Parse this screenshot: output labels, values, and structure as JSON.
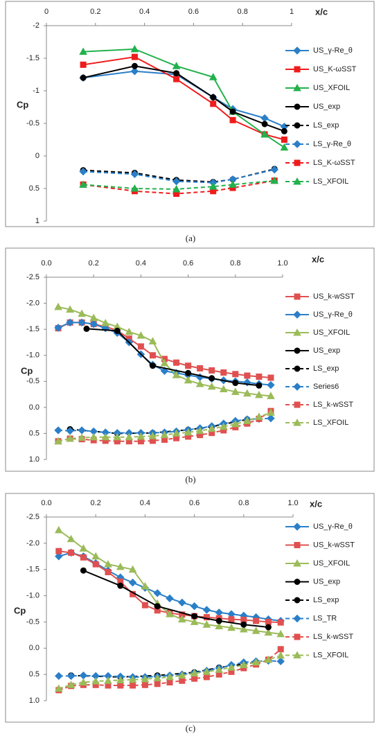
{
  "chart_data": [
    {
      "type": "line",
      "caption": "(a)",
      "xlabel": "x/c",
      "ylabel": "Cp",
      "xlim": [
        0,
        1
      ],
      "xticks": [
        0,
        0.2,
        0.4,
        0.6,
        0.8,
        1
      ],
      "ylim": [
        -2,
        1
      ],
      "y_reversed": true,
      "yticks": [
        -2,
        -1.5,
        -1,
        -0.5,
        0,
        0.5,
        1
      ],
      "legend": "right",
      "series": [
        {
          "name": "US_γ-Re_θ",
          "color": "#2a7fc8",
          "marker": "diamond",
          "dashed": false,
          "x": [
            0.15,
            0.36,
            0.53,
            0.68,
            0.76,
            0.89,
            0.97
          ],
          "values": [
            -1.2,
            -1.3,
            -1.25,
            -0.9,
            -0.72,
            -0.58,
            -0.45
          ]
        },
        {
          "name": "US_K-ωSST",
          "color": "#ee1c1c",
          "marker": "square",
          "dashed": false,
          "x": [
            0.15,
            0.36,
            0.53,
            0.68,
            0.76,
            0.89,
            0.97
          ],
          "values": [
            -1.4,
            -1.52,
            -1.18,
            -0.8,
            -0.55,
            -0.33,
            -0.25
          ]
        },
        {
          "name": "US_XFOIL",
          "color": "#22b14c",
          "marker": "triangle",
          "dashed": false,
          "x": [
            0.15,
            0.36,
            0.53,
            0.68,
            0.76,
            0.89,
            0.97
          ],
          "values": [
            -1.6,
            -1.64,
            -1.38,
            -1.21,
            -0.68,
            -0.33,
            -0.13
          ]
        },
        {
          "name": "US_exp",
          "color": "#000000",
          "marker": "circle",
          "dashed": false,
          "x": [
            0.15,
            0.36,
            0.53,
            0.68,
            0.76,
            0.89,
            0.97
          ],
          "values": [
            -1.2,
            -1.38,
            -1.27,
            -0.9,
            -0.68,
            -0.49,
            -0.38
          ]
        },
        {
          "name": "LS_exp",
          "color": "#000000",
          "marker": "circle",
          "dashed": true,
          "x": [
            0.15,
            0.36,
            0.53,
            0.68,
            0.76,
            0.93
          ],
          "values": [
            0.22,
            0.26,
            0.37,
            0.4,
            0.36,
            0.2
          ]
        },
        {
          "name": "LS_γ-Re_θ",
          "color": "#2a7fc8",
          "marker": "diamond",
          "dashed": true,
          "x": [
            0.15,
            0.36,
            0.53,
            0.68,
            0.76,
            0.93
          ],
          "values": [
            0.24,
            0.28,
            0.39,
            0.41,
            0.36,
            0.21
          ]
        },
        {
          "name": "LS_K-ωSST",
          "color": "#ee1c1c",
          "marker": "square",
          "dashed": true,
          "x": [
            0.15,
            0.36,
            0.53,
            0.68,
            0.76,
            0.93
          ],
          "values": [
            0.44,
            0.54,
            0.58,
            0.54,
            0.49,
            0.38
          ]
        },
        {
          "name": "LS_XFOIL",
          "color": "#22b14c",
          "marker": "triangle",
          "dashed": true,
          "x": [
            0.15,
            0.36,
            0.53,
            0.68,
            0.76,
            0.93
          ],
          "values": [
            0.44,
            0.5,
            0.51,
            0.47,
            0.44,
            0.38
          ]
        }
      ]
    },
    {
      "type": "line",
      "caption": "(b)",
      "xlabel": "x/c",
      "ylabel": "Cp",
      "xlim": [
        0,
        1
      ],
      "xticks": [
        {
          "value": 0,
          "label": "0.0"
        },
        0.2,
        0.4,
        0.6,
        0.8,
        {
          "value": 1,
          "label": "1.0"
        }
      ],
      "ylim": [
        -2.5,
        1
      ],
      "y_reversed": true,
      "yticks": [
        {
          "value": -2.5,
          "label": "-2.5"
        },
        {
          "value": -2,
          "label": "-2.0"
        },
        {
          "value": -1.5,
          "label": "-1.5"
        },
        {
          "value": -1,
          "label": "-1.0"
        },
        {
          "value": -0.5,
          "label": "-0.5"
        },
        {
          "value": 0,
          "label": "0.0"
        },
        {
          "value": 0.5,
          "label": "0.5"
        },
        {
          "value": 1,
          "label": "1.0"
        }
      ],
      "legend": "right",
      "series": [
        {
          "name": "US_k-wSST",
          "color": "#e05050",
          "marker": "square",
          "dashed": false,
          "x": [
            0.05,
            0.1,
            0.15,
            0.2,
            0.25,
            0.3,
            0.35,
            0.4,
            0.45,
            0.5,
            0.55,
            0.6,
            0.65,
            0.7,
            0.75,
            0.8,
            0.85,
            0.9,
            0.95
          ],
          "values": [
            -1.52,
            -1.63,
            -1.63,
            -1.6,
            -1.55,
            -1.48,
            -1.32,
            -1.17,
            -1.0,
            -0.93,
            -0.86,
            -0.8,
            -0.75,
            -0.71,
            -0.67,
            -0.64,
            -0.61,
            -0.59,
            -0.57
          ]
        },
        {
          "name": "US_γ-Re_θ",
          "color": "#2a7fc8",
          "marker": "diamond",
          "dashed": false,
          "x": [
            0.05,
            0.1,
            0.15,
            0.2,
            0.25,
            0.3,
            0.35,
            0.4,
            0.45,
            0.5,
            0.55,
            0.6,
            0.65,
            0.7,
            0.75,
            0.8,
            0.85,
            0.9,
            0.95
          ],
          "values": [
            -1.53,
            -1.63,
            -1.63,
            -1.6,
            -1.52,
            -1.43,
            -1.25,
            -1.02,
            -0.82,
            -0.7,
            -0.66,
            -0.62,
            -0.58,
            -0.55,
            -0.52,
            -0.5,
            -0.48,
            -0.45,
            -0.43
          ]
        },
        {
          "name": "US_XFOIL",
          "color": "#9bbb59",
          "marker": "triangle",
          "dashed": false,
          "x": [
            0.05,
            0.1,
            0.15,
            0.2,
            0.25,
            0.3,
            0.35,
            0.4,
            0.45,
            0.5,
            0.55,
            0.6,
            0.65,
            0.7,
            0.75,
            0.8,
            0.85,
            0.9,
            0.95
          ],
          "values": [
            -1.93,
            -1.88,
            -1.8,
            -1.72,
            -1.62,
            -1.55,
            -1.45,
            -1.38,
            -1.27,
            -0.85,
            -0.62,
            -0.52,
            -0.45,
            -0.4,
            -0.35,
            -0.3,
            -0.27,
            -0.24,
            -0.22
          ]
        },
        {
          "name": "US_exp",
          "color": "#000000",
          "marker": "circle",
          "dashed": false,
          "x": [
            0.17,
            0.3,
            0.45,
            0.6,
            0.7,
            0.8,
            0.9
          ],
          "values": [
            -1.51,
            -1.47,
            -0.8,
            -0.66,
            -0.56,
            -0.47,
            -0.42
          ]
        },
        {
          "name": "LS_exp",
          "color": "#000000",
          "marker": "circle",
          "dashed": true,
          "x": [
            0.1,
            0.3,
            0.45,
            0.6,
            0.7,
            0.85
          ],
          "values": [
            0.42,
            0.5,
            0.49,
            0.43,
            0.37,
            0.23
          ]
        },
        {
          "name": "Series6",
          "color": "#2a7fc8",
          "marker": "diamond",
          "dashed": true,
          "x": [
            0.05,
            0.1,
            0.15,
            0.2,
            0.25,
            0.3,
            0.35,
            0.4,
            0.45,
            0.5,
            0.55,
            0.6,
            0.65,
            0.7,
            0.75,
            0.8,
            0.85,
            0.9,
            0.95
          ],
          "values": [
            0.44,
            0.45,
            0.44,
            0.46,
            0.48,
            0.49,
            0.49,
            0.49,
            0.49,
            0.48,
            0.46,
            0.43,
            0.4,
            0.36,
            0.31,
            0.26,
            0.23,
            0.22,
            0.21
          ]
        },
        {
          "name": "LS_k-wSST",
          "color": "#e05050",
          "marker": "square",
          "dashed": true,
          "x": [
            0.05,
            0.1,
            0.15,
            0.2,
            0.25,
            0.3,
            0.35,
            0.4,
            0.45,
            0.5,
            0.55,
            0.6,
            0.65,
            0.7,
            0.75,
            0.8,
            0.85,
            0.9,
            0.95
          ],
          "values": [
            0.65,
            0.6,
            0.61,
            0.63,
            0.64,
            0.65,
            0.65,
            0.65,
            0.64,
            0.62,
            0.59,
            0.56,
            0.53,
            0.49,
            0.44,
            0.38,
            0.31,
            0.22,
            0.07
          ]
        },
        {
          "name": "LS_XFOIL",
          "color": "#9bbb59",
          "marker": "triangle",
          "dashed": true,
          "x": [
            0.05,
            0.1,
            0.15,
            0.2,
            0.25,
            0.3,
            0.35,
            0.4,
            0.45,
            0.5,
            0.55,
            0.6,
            0.65,
            0.7,
            0.75,
            0.8,
            0.85,
            0.9,
            0.95
          ],
          "values": [
            0.65,
            0.6,
            0.58,
            0.57,
            0.57,
            0.57,
            0.57,
            0.56,
            0.55,
            0.53,
            0.5,
            0.48,
            0.45,
            0.41,
            0.37,
            0.32,
            0.26,
            0.18,
            0.1
          ]
        }
      ]
    },
    {
      "type": "line",
      "caption": "(c)",
      "xlabel": "x/c",
      "ylabel": "Cp",
      "xlim": [
        0,
        1
      ],
      "xticks": [
        {
          "value": 0,
          "label": "0.0"
        },
        0.2,
        0.4,
        0.6,
        0.8,
        {
          "value": 1,
          "label": "1.0"
        }
      ],
      "ylim": [
        -2.5,
        1
      ],
      "y_reversed": true,
      "yticks": [
        {
          "value": -2.5,
          "label": "-2.5"
        },
        {
          "value": -2,
          "label": "-2.0"
        },
        {
          "value": -1.5,
          "label": "-1.5"
        },
        {
          "value": -1,
          "label": "-1.0"
        },
        {
          "value": -0.5,
          "label": "-0.5"
        },
        {
          "value": 0,
          "label": "0.0"
        },
        {
          "value": 0.5,
          "label": "0.5"
        },
        {
          "value": 1,
          "label": "1.0"
        }
      ],
      "legend": "right",
      "series": [
        {
          "name": "US_γ-Re_θ",
          "color": "#2a7fc8",
          "marker": "diamond",
          "dashed": false,
          "x": [
            0.05,
            0.1,
            0.15,
            0.2,
            0.25,
            0.3,
            0.35,
            0.4,
            0.45,
            0.5,
            0.55,
            0.6,
            0.65,
            0.7,
            0.75,
            0.8,
            0.85,
            0.9,
            0.95
          ],
          "values": [
            -1.75,
            -1.82,
            -1.75,
            -1.62,
            -1.48,
            -1.35,
            -1.25,
            -1.15,
            -1.05,
            -0.95,
            -0.87,
            -0.8,
            -0.73,
            -0.68,
            -0.65,
            -0.62,
            -0.59,
            -0.55,
            -0.52
          ]
        },
        {
          "name": "US_k-wSST",
          "color": "#e05050",
          "marker": "square",
          "dashed": false,
          "x": [
            0.05,
            0.1,
            0.15,
            0.2,
            0.25,
            0.3,
            0.35,
            0.4,
            0.45,
            0.5,
            0.55,
            0.6,
            0.65,
            0.7,
            0.75,
            0.8,
            0.85,
            0.9,
            0.95
          ],
          "values": [
            -1.85,
            -1.82,
            -1.73,
            -1.6,
            -1.45,
            -1.27,
            -1.03,
            -0.82,
            -0.72,
            -0.67,
            -0.64,
            -0.61,
            -0.59,
            -0.57,
            -0.55,
            -0.54,
            -0.52,
            -0.5,
            -0.49
          ]
        },
        {
          "name": "US_XFOIL",
          "color": "#9bbb59",
          "marker": "triangle",
          "dashed": false,
          "x": [
            0.05,
            0.1,
            0.15,
            0.2,
            0.25,
            0.3,
            0.35,
            0.4,
            0.45,
            0.5,
            0.55,
            0.6,
            0.65,
            0.7,
            0.75,
            0.8,
            0.85,
            0.9,
            0.95
          ],
          "values": [
            -2.25,
            -2.08,
            -1.9,
            -1.75,
            -1.6,
            -1.55,
            -1.5,
            -1.18,
            -0.85,
            -0.65,
            -0.55,
            -0.5,
            -0.45,
            -0.42,
            -0.39,
            -0.36,
            -0.33,
            -0.3,
            -0.27
          ]
        },
        {
          "name": "US_exp",
          "color": "#000000",
          "marker": "circle",
          "dashed": false,
          "x": [
            0.15,
            0.3,
            0.45,
            0.6,
            0.7,
            0.8,
            0.9
          ],
          "values": [
            -1.48,
            -1.19,
            -0.8,
            -0.61,
            -0.52,
            -0.45,
            -0.4
          ]
        },
        {
          "name": "LS_exp",
          "color": "#000000",
          "marker": "circle",
          "dashed": true,
          "x": [
            0.1,
            0.3,
            0.45,
            0.6,
            0.7,
            0.85
          ],
          "values": [
            0.52,
            0.55,
            0.52,
            0.46,
            0.37,
            0.27
          ]
        },
        {
          "name": "LS_TR",
          "color": "#2a7fc8",
          "marker": "diamond",
          "dashed": true,
          "x": [
            0.05,
            0.1,
            0.15,
            0.2,
            0.25,
            0.3,
            0.35,
            0.4,
            0.45,
            0.5,
            0.55,
            0.6,
            0.65,
            0.7,
            0.75,
            0.8,
            0.85,
            0.9,
            0.95
          ],
          "values": [
            0.53,
            0.53,
            0.52,
            0.53,
            0.53,
            0.54,
            0.55,
            0.55,
            0.54,
            0.52,
            0.5,
            0.47,
            0.43,
            0.38,
            0.32,
            0.27,
            0.25,
            0.24,
            0.25
          ]
        },
        {
          "name": "LS_k-wSST",
          "color": "#e05050",
          "marker": "square",
          "dashed": true,
          "x": [
            0.05,
            0.1,
            0.15,
            0.2,
            0.25,
            0.3,
            0.35,
            0.4,
            0.45,
            0.5,
            0.55,
            0.6,
            0.65,
            0.7,
            0.75,
            0.8,
            0.85,
            0.9,
            0.95
          ],
          "values": [
            0.8,
            0.72,
            0.7,
            0.7,
            0.71,
            0.71,
            0.71,
            0.7,
            0.68,
            0.65,
            0.62,
            0.58,
            0.55,
            0.5,
            0.45,
            0.38,
            0.31,
            0.22,
            0.02
          ]
        },
        {
          "name": "LS_XFOIL",
          "color": "#9bbb59",
          "marker": "triangle",
          "dashed": true,
          "x": [
            0.05,
            0.1,
            0.15,
            0.2,
            0.25,
            0.3,
            0.35,
            0.4,
            0.45,
            0.5,
            0.55,
            0.6,
            0.65,
            0.7,
            0.75,
            0.8,
            0.85,
            0.9,
            0.95
          ],
          "values": [
            0.77,
            0.7,
            0.65,
            0.63,
            0.62,
            0.61,
            0.6,
            0.59,
            0.57,
            0.55,
            0.52,
            0.48,
            0.45,
            0.41,
            0.37,
            0.32,
            0.27,
            0.22,
            0.14
          ]
        }
      ]
    }
  ]
}
